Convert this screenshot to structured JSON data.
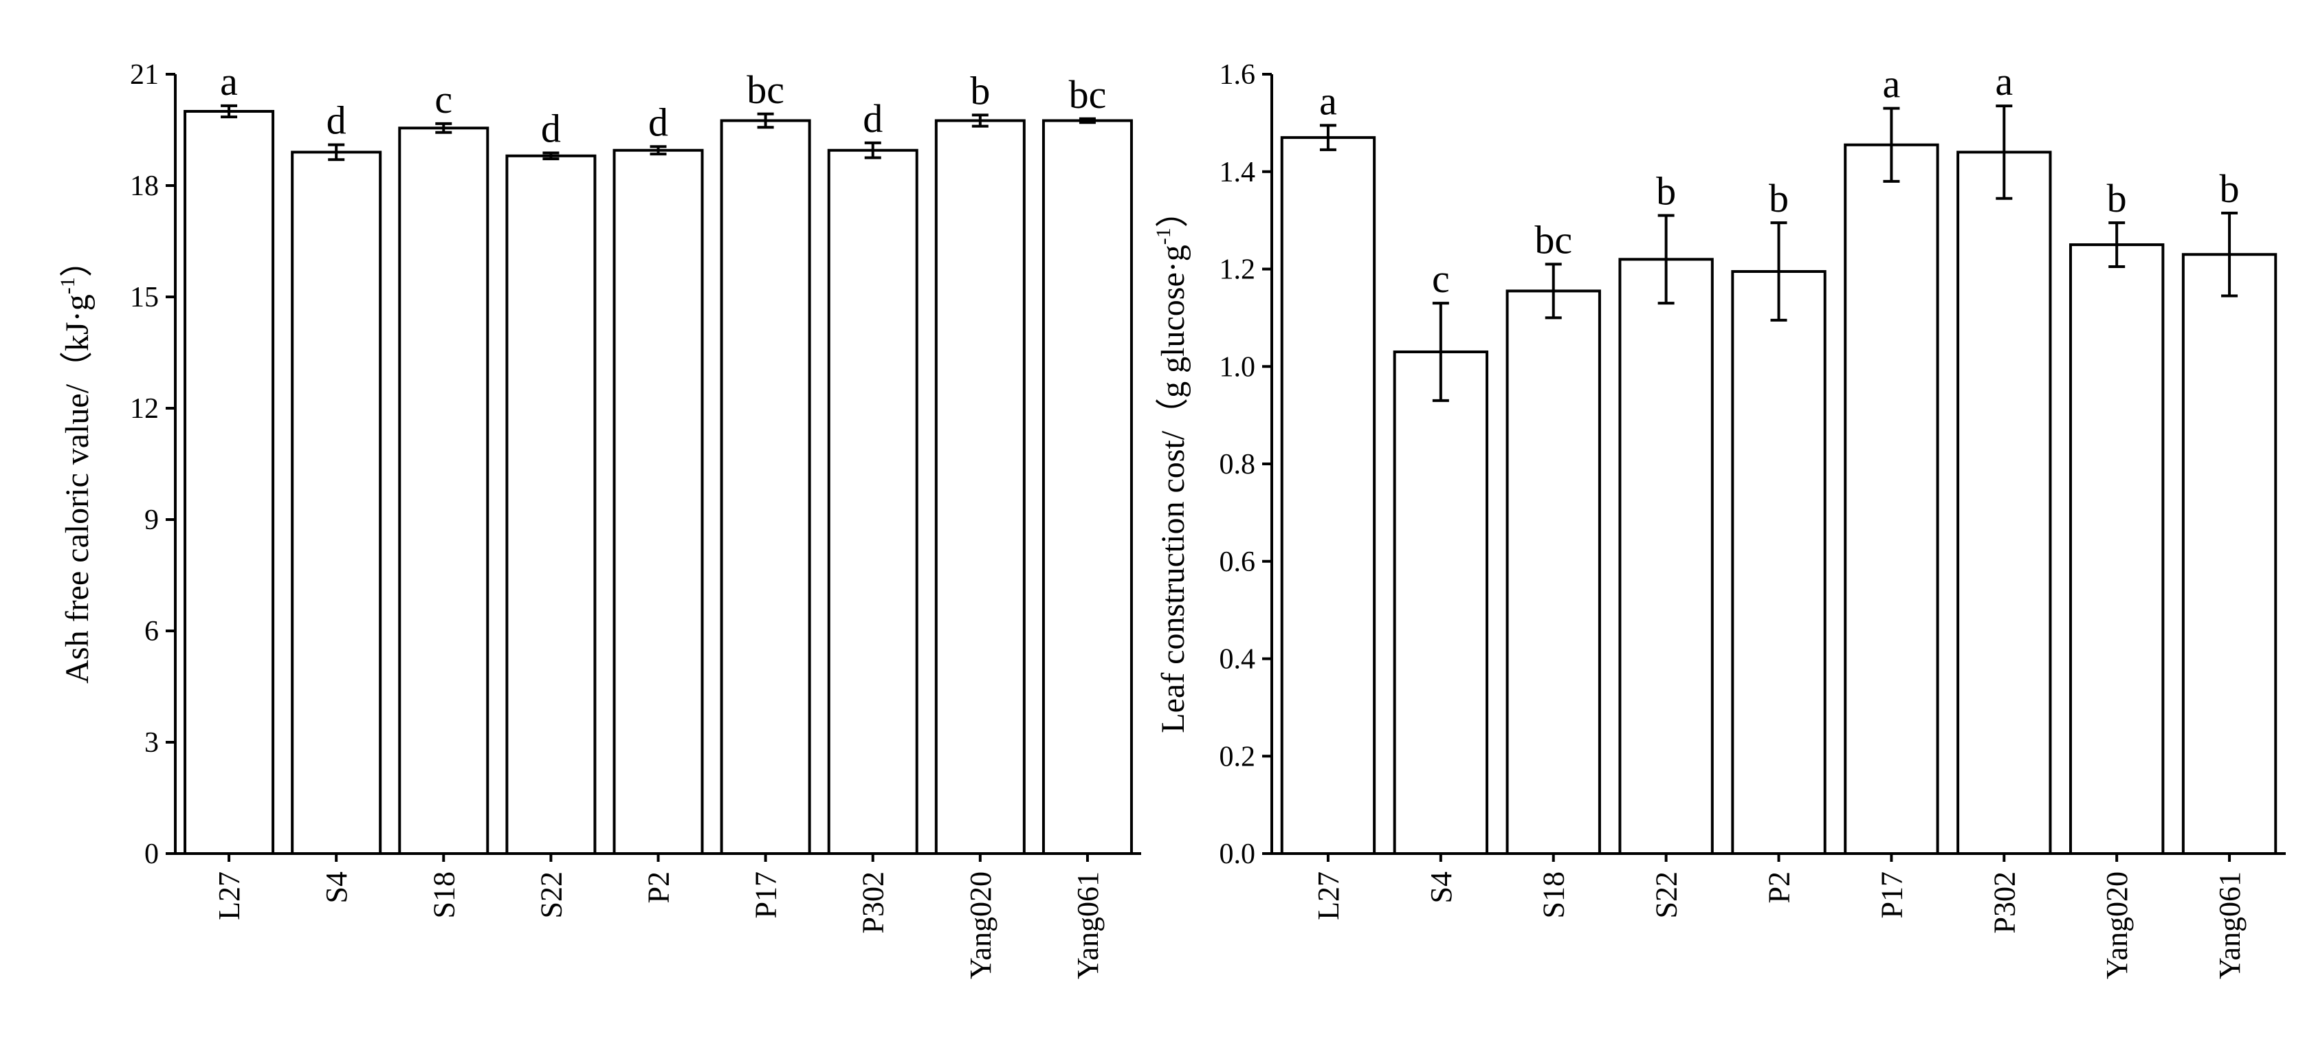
{
  "chart_data": [
    {
      "type": "bar",
      "title": "",
      "xlabel": "",
      "ylabel_main": "Ash free caloric value/（kJ·g",
      "ylabel_sup": "-1",
      "ylabel_end": "）",
      "ylim": [
        0,
        21
      ],
      "yticks": [
        "0",
        "3",
        "6",
        "9",
        "12",
        "15",
        "18",
        "21"
      ],
      "grid": false,
      "categories": [
        "L27",
        "S4",
        "S18",
        "S22",
        "P2",
        "P17",
        "P302",
        "Yang020",
        "Yang061"
      ],
      "values": [
        20.0,
        18.9,
        19.55,
        18.8,
        18.95,
        19.75,
        18.95,
        19.75,
        19.75
      ],
      "errors": [
        0.15,
        0.2,
        0.12,
        0.08,
        0.1,
        0.18,
        0.2,
        0.15,
        0.05
      ],
      "letters": [
        "a",
        "d",
        "c",
        "d",
        "d",
        "bc",
        "d",
        "b",
        "bc"
      ]
    },
    {
      "type": "bar",
      "title": "",
      "xlabel": "",
      "ylabel_main": "Leaf construction cost/（g glucose·g",
      "ylabel_sup": "-1",
      "ylabel_end": "）",
      "ylim": [
        0,
        1.6
      ],
      "yticks": [
        "0.0",
        "0.2",
        "0.4",
        "0.6",
        "0.8",
        "1.0",
        "1.2",
        "1.4",
        "1.6"
      ],
      "grid": false,
      "categories": [
        "L27",
        "S4",
        "S18",
        "S22",
        "P2",
        "P17",
        "P302",
        "Yang020",
        "Yang061"
      ],
      "values": [
        1.47,
        1.03,
        1.155,
        1.22,
        1.195,
        1.455,
        1.44,
        1.25,
        1.23
      ],
      "errors": [
        0.025,
        0.1,
        0.055,
        0.09,
        0.1,
        0.075,
        0.095,
        0.045,
        0.085
      ],
      "letters": [
        "a",
        "c",
        "bc",
        "b",
        "b",
        "a",
        "a",
        "b",
        "b"
      ]
    }
  ]
}
